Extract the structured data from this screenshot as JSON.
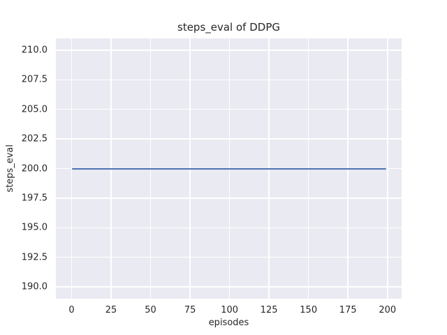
{
  "figure": {
    "title": "steps_eval of DDPG",
    "xlabel": "episodes",
    "ylabel": "steps_eval"
  },
  "chart_data": {
    "type": "line",
    "title": "steps_eval of DDPG",
    "xlabel": "episodes",
    "ylabel": "steps_eval",
    "xlim": [
      -9.95,
      208.95
    ],
    "ylim": [
      189,
      211
    ],
    "grid": true,
    "legend": false,
    "xticks": {
      "values": [
        0,
        25,
        50,
        75,
        100,
        125,
        150,
        175,
        200
      ],
      "labels": [
        "0",
        "25",
        "50",
        "75",
        "100",
        "125",
        "150",
        "175",
        "200"
      ]
    },
    "yticks": {
      "values": [
        190,
        192.5,
        195,
        197.5,
        200,
        202.5,
        205,
        207.5,
        210
      ],
      "labels": [
        "190.0",
        "192.5",
        "195.0",
        "197.5",
        "200.0",
        "202.5",
        "205.0",
        "207.5",
        "210.0"
      ]
    },
    "series": [
      {
        "name": "steps_eval",
        "x": [
          0,
          199
        ],
        "y": [
          200,
          200
        ],
        "color": "#4C72B0"
      }
    ]
  },
  "colors": {
    "figure_background": "#FFFFFF",
    "axes_background": "#EAEAF2",
    "grid": "#FFFFFF",
    "line": "#4C72B0",
    "text": "#262626"
  }
}
